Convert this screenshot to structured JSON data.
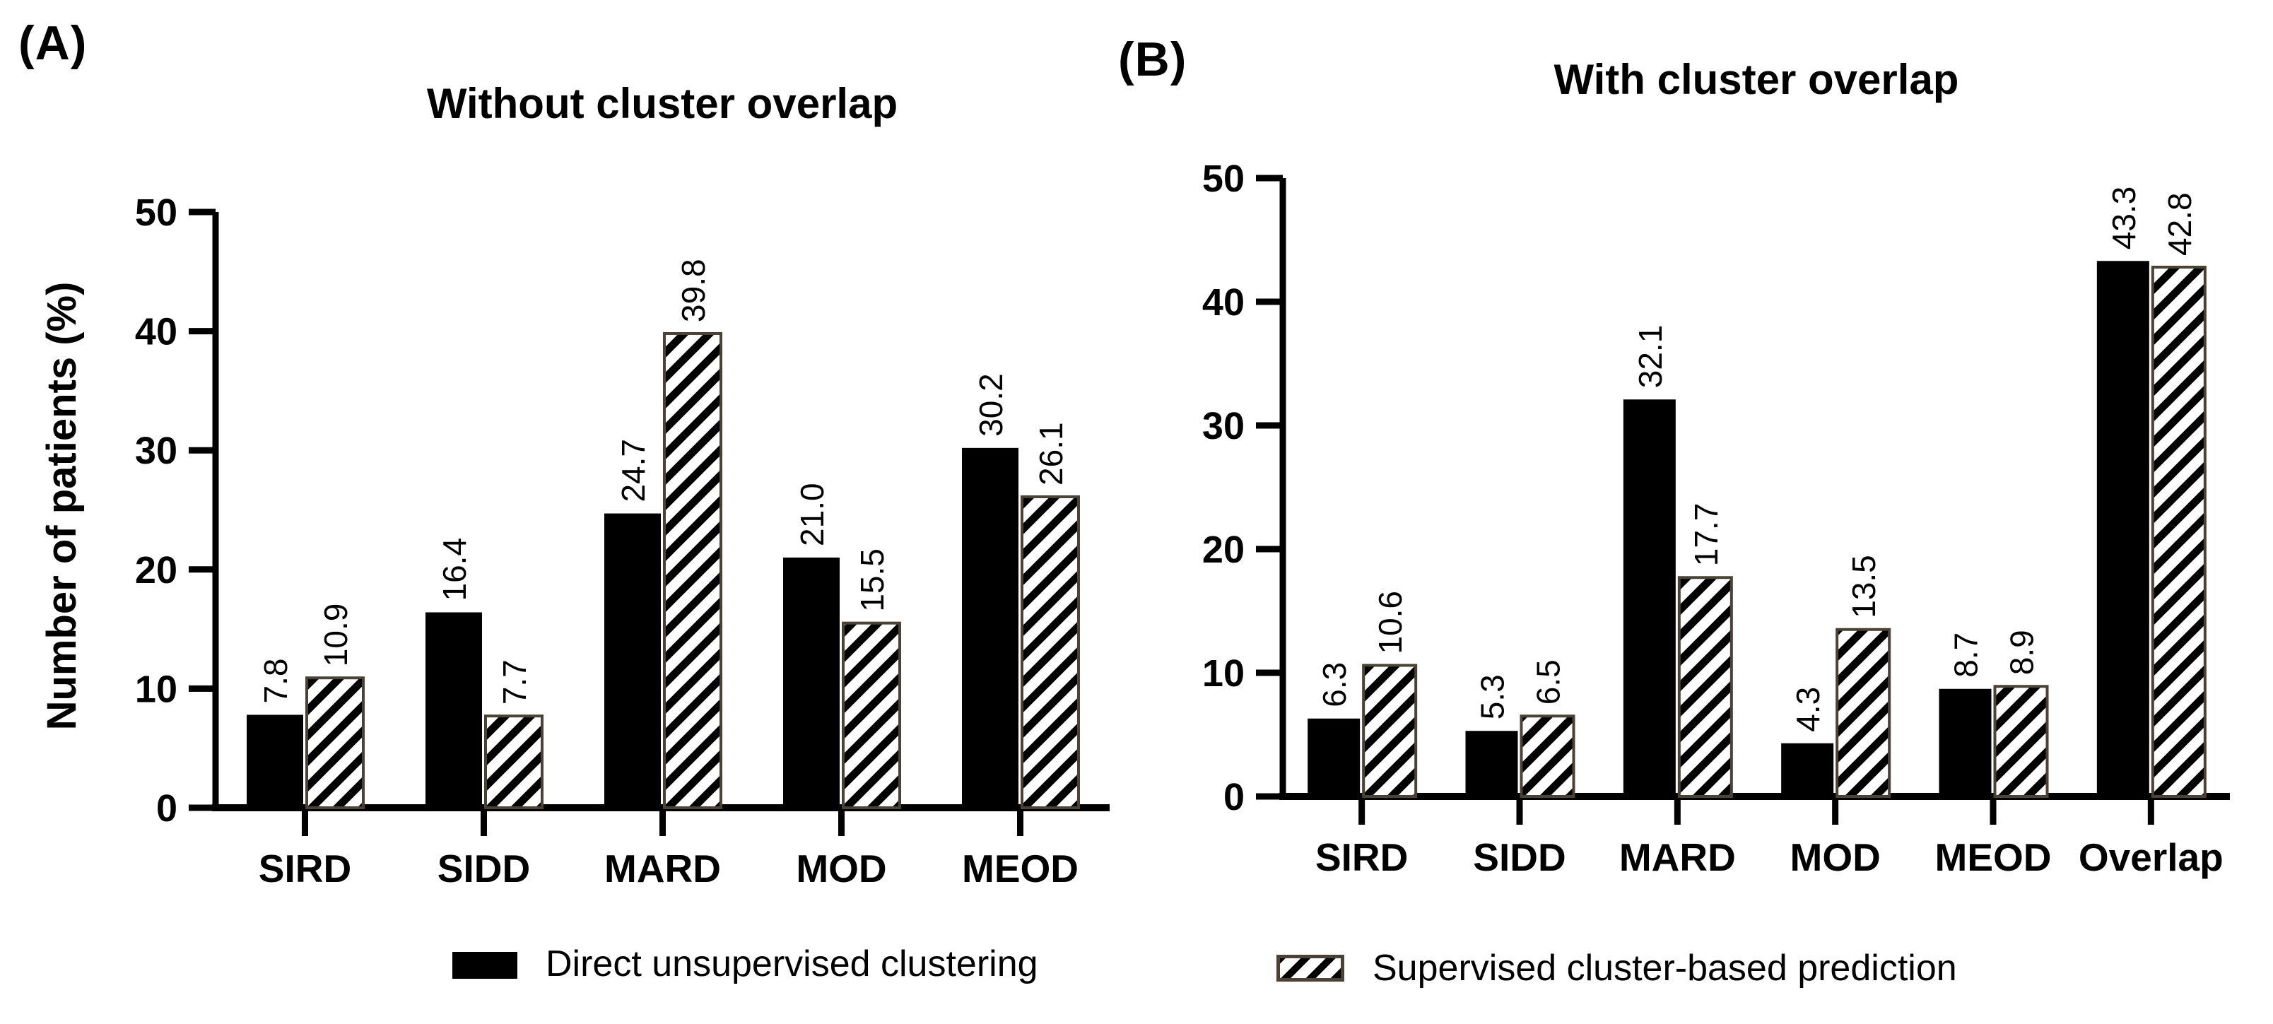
{
  "figure": {
    "panels": [
      {
        "tag": "(A)"
      },
      {
        "tag": "(B)"
      }
    ],
    "legend": [
      {
        "swatch": "black-solid-swatch",
        "label": "Direct unsupervised clustering"
      },
      {
        "swatch": "black-hatched-swatch",
        "label": "Supervised cluster-based prediction"
      }
    ]
  },
  "colors": {
    "background": "#ffffff",
    "bar_fill": "#000000",
    "hatch_stripe": "#000000",
    "hatch_background": "#ffffff",
    "hatched_bar_outline": "#4a4234",
    "axis": "#000000",
    "text": "#000000"
  },
  "chart_data": [
    {
      "id": "A",
      "type": "bar",
      "title": "Without cluster overlap",
      "xlabel": "",
      "ylabel": "Number of patients (%)",
      "ylim": [
        0,
        50
      ],
      "yticks": [
        0,
        10,
        20,
        30,
        40,
        50
      ],
      "grid": false,
      "legend_position": "bottom",
      "bar_value_labels": "rotated-90",
      "categories": [
        "SIRD",
        "SIDD",
        "MARD",
        "MOD",
        "MEOD"
      ],
      "series": [
        {
          "name": "Direct unsupervised clustering",
          "pattern": "solid",
          "values": [
            7.8,
            16.4,
            24.7,
            21.0,
            30.2
          ]
        },
        {
          "name": "Supervised cluster-based prediction",
          "pattern": "hatched",
          "values": [
            10.9,
            7.7,
            39.8,
            15.5,
            26.1
          ]
        }
      ]
    },
    {
      "id": "B",
      "type": "bar",
      "title": "With cluster overlap",
      "xlabel": "",
      "ylabel": "",
      "ylim": [
        0,
        50
      ],
      "yticks": [
        0,
        10,
        20,
        30,
        40,
        50
      ],
      "grid": false,
      "legend_position": "bottom",
      "bar_value_labels": "rotated-90",
      "categories": [
        "SIRD",
        "SIDD",
        "MARD",
        "MOD",
        "MEOD",
        "Overlap"
      ],
      "series": [
        {
          "name": "Direct unsupervised clustering",
          "pattern": "solid",
          "values": [
            6.3,
            5.3,
            32.1,
            4.3,
            8.7,
            43.3
          ]
        },
        {
          "name": "Supervised cluster-based prediction",
          "pattern": "hatched",
          "values": [
            10.6,
            6.5,
            17.7,
            13.5,
            8.9,
            42.8
          ]
        }
      ]
    }
  ]
}
